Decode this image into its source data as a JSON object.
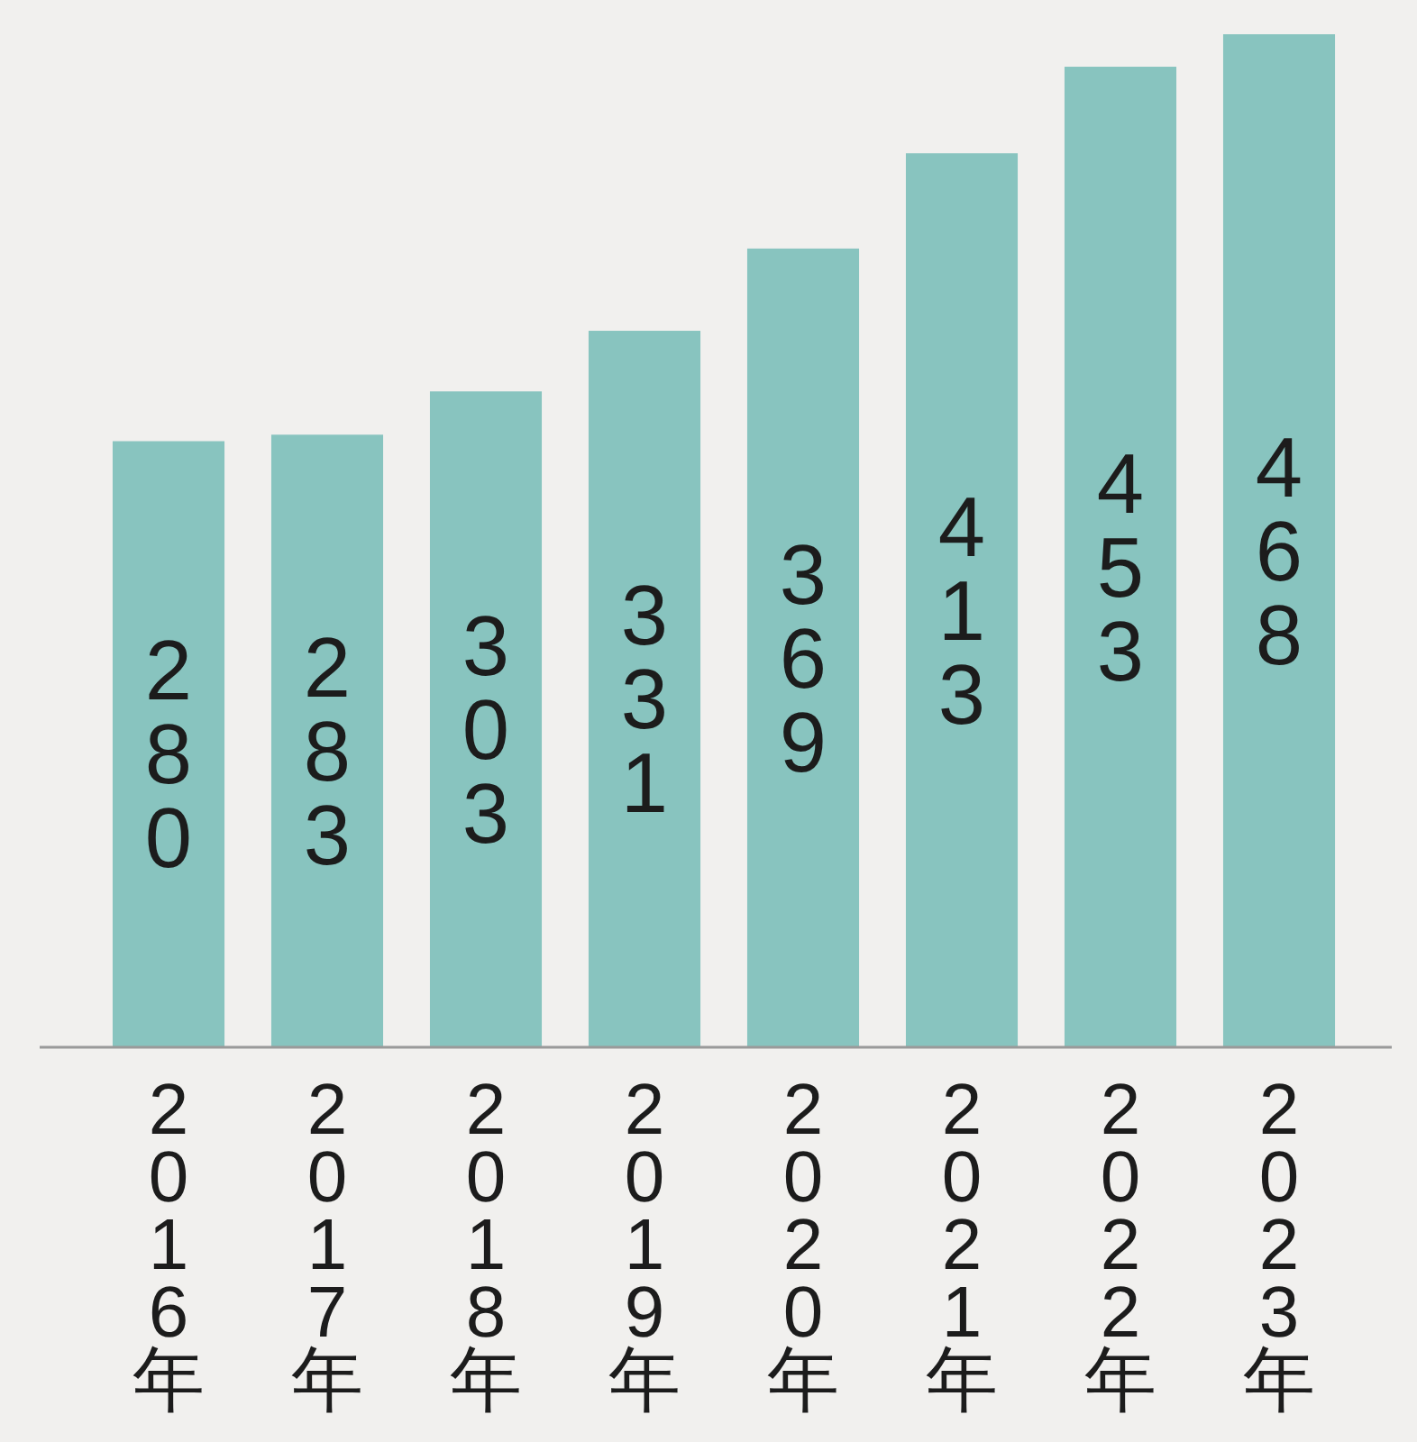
{
  "chart_data": {
    "type": "bar",
    "categories": [
      "2016年",
      "2017年",
      "2018年",
      "2019年",
      "2020年",
      "2021年",
      "2022年",
      "2023年"
    ],
    "values": [
      280,
      283,
      303,
      331,
      369,
      413,
      453,
      468
    ],
    "color": "#88c4bf",
    "data_labels": true
  }
}
